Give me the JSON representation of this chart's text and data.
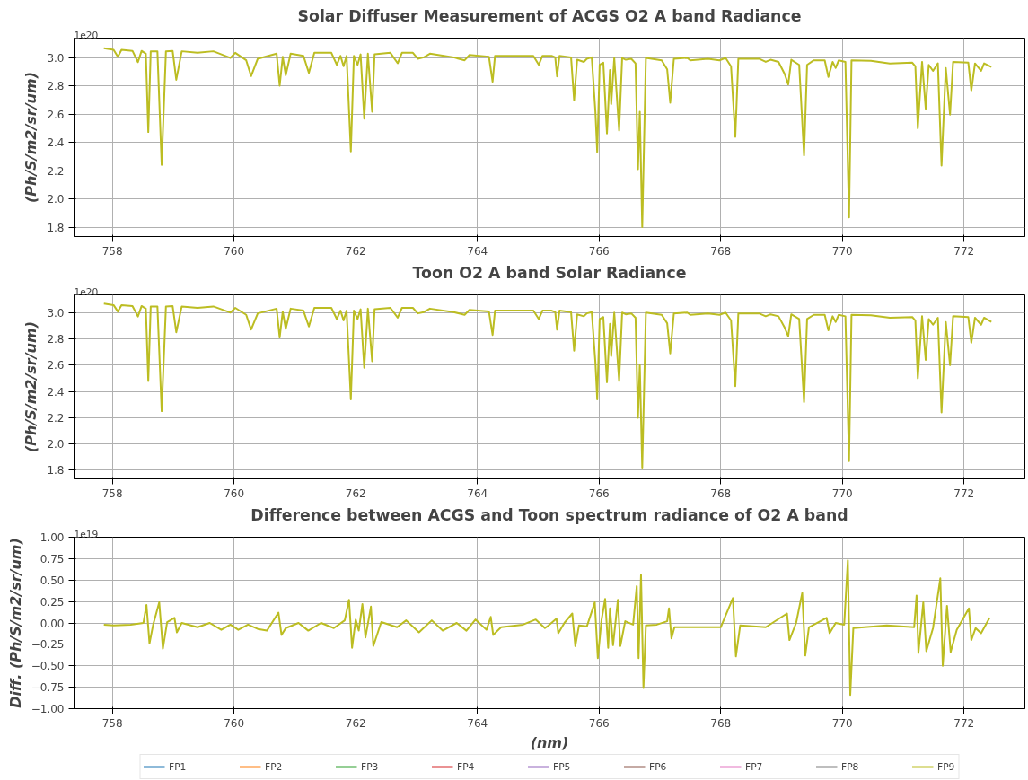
{
  "chart_data": [
    {
      "type": "line",
      "title": "Solar Diffuser Measurement of ACGS O2 A band Radiance",
      "ylabel": "(Ph/S/m2/sr/um)",
      "annotations": [
        "1e20"
      ],
      "x": [
        757.86,
        758.02,
        758.09,
        758.15,
        758.33,
        758.42,
        758.48,
        758.55,
        758.59,
        758.63,
        758.74,
        758.81,
        758.88,
        758.99,
        759.05,
        759.14,
        759.4,
        759.66,
        759.94,
        760.02,
        760.2,
        760.28,
        760.39,
        760.7,
        760.75,
        760.8,
        760.85,
        760.93,
        761.14,
        761.23,
        761.32,
        761.6,
        761.69,
        761.75,
        761.8,
        761.85,
        761.92,
        761.97,
        762.03,
        762.08,
        762.14,
        762.2,
        762.27,
        762.31,
        762.57,
        762.69,
        762.76,
        762.94,
        763.02,
        763.12,
        763.22,
        763.61,
        763.79,
        763.87,
        764.19,
        764.25,
        764.29,
        764.92,
        765.01,
        765.07,
        765.22,
        765.28,
        765.31,
        765.35,
        765.54,
        765.59,
        765.64,
        765.75,
        765.8,
        765.88,
        765.94,
        765.97,
        766.01,
        766.07,
        766.13,
        766.18,
        766.2,
        766.25,
        766.33,
        766.38,
        766.44,
        766.53,
        766.6,
        766.64,
        766.67,
        766.71,
        766.77,
        767.03,
        767.12,
        767.17,
        767.23,
        767.45,
        767.5,
        767.79,
        767.98,
        768.08,
        768.17,
        768.24,
        768.29,
        768.63,
        768.74,
        768.82,
        768.95,
        769.05,
        769.11,
        769.16,
        769.29,
        769.37,
        769.42,
        769.53,
        769.71,
        769.77,
        769.84,
        769.89,
        769.94,
        770.05,
        770.11,
        770.15,
        770.47,
        770.78,
        771.15,
        771.2,
        771.24,
        771.31,
        771.37,
        771.42,
        771.49,
        771.57,
        771.63,
        771.7,
        771.77,
        771.82,
        772.07,
        772.12,
        772.18,
        772.28,
        772.33,
        772.45
      ],
      "series": [
        {
          "color": "#bcbd22",
          "values": [
            3.068,
            3.057,
            3.008,
            3.057,
            3.05,
            2.97,
            3.05,
            3.03,
            2.475,
            3.047,
            3.047,
            2.242,
            3.047,
            3.05,
            2.845,
            3.047,
            3.036,
            3.047,
            3.0,
            3.036,
            2.983,
            2.871,
            2.994,
            3.03,
            2.803,
            3.008,
            2.877,
            3.03,
            3.015,
            2.894,
            3.036,
            3.036,
            2.951,
            3.015,
            2.941,
            3.015,
            2.337,
            3.015,
            2.951,
            3.025,
            2.57,
            3.03,
            2.619,
            3.025,
            3.036,
            2.962,
            3.036,
            3.036,
            2.994,
            3.004,
            3.03,
            3.004,
            2.983,
            3.021,
            3.008,
            2.831,
            3.015,
            3.015,
            2.951,
            3.015,
            3.015,
            3.004,
            2.869,
            3.015,
            3.004,
            2.7,
            2.987,
            2.972,
            2.994,
            3.004,
            2.619,
            2.33,
            2.951,
            2.966,
            2.465,
            2.914,
            2.673,
            3.0,
            2.486,
            3.0,
            2.987,
            2.994,
            2.961,
            2.212,
            2.619,
            1.802,
            3.0,
            2.983,
            2.919,
            2.683,
            2.994,
            3.0,
            2.983,
            2.994,
            2.983,
            3.0,
            2.94,
            2.441,
            2.994,
            2.994,
            2.972,
            2.987,
            2.972,
            2.887,
            2.812,
            2.987,
            2.951,
            2.309,
            2.951,
            2.983,
            2.983,
            2.865,
            2.972,
            2.929,
            2.983,
            2.972,
            1.87,
            2.983,
            2.979,
            2.961,
            2.966,
            2.94,
            2.501,
            2.972,
            2.64,
            2.951,
            2.908,
            2.961,
            2.238,
            2.929,
            2.598,
            2.972,
            2.966,
            2.769,
            2.961,
            2.908,
            2.961,
            2.936
          ]
        }
      ],
      "xlim": [
        757.37,
        773.0
      ],
      "xticks": [
        758,
        760,
        762,
        764,
        766,
        768,
        770,
        772
      ],
      "ylim": [
        1.735,
        3.14
      ],
      "yticks": [
        {
          "value": 1.8,
          "label": "1.8"
        },
        {
          "value": 2.0,
          "label": "2.0"
        },
        {
          "value": 2.2,
          "label": "2.2"
        },
        {
          "value": 2.4,
          "label": "2.4"
        },
        {
          "value": 2.6,
          "label": "2.6"
        },
        {
          "value": 2.8,
          "label": "2.8"
        },
        {
          "value": 3.0,
          "label": "3.0"
        }
      ],
      "grid": true,
      "line_style": "solid",
      "marker": "none"
    },
    {
      "type": "line",
      "title": "Toon O2 A band Solar Radiance",
      "ylabel": "(Ph/S/m2/sr/um)",
      "annotations": [
        "1e20"
      ],
      "x": [
        757.86,
        758.02,
        758.09,
        758.15,
        758.33,
        758.42,
        758.48,
        758.55,
        758.59,
        758.63,
        758.74,
        758.81,
        758.88,
        758.99,
        759.05,
        759.14,
        759.4,
        759.66,
        759.94,
        760.02,
        760.2,
        760.28,
        760.39,
        760.7,
        760.75,
        760.8,
        760.85,
        760.93,
        761.14,
        761.23,
        761.32,
        761.6,
        761.69,
        761.75,
        761.8,
        761.85,
        761.92,
        761.97,
        762.03,
        762.08,
        762.14,
        762.2,
        762.27,
        762.31,
        762.57,
        762.69,
        762.76,
        762.94,
        763.02,
        763.12,
        763.22,
        763.61,
        763.79,
        763.87,
        764.19,
        764.25,
        764.29,
        764.92,
        765.01,
        765.07,
        765.22,
        765.28,
        765.31,
        765.35,
        765.54,
        765.59,
        765.64,
        765.75,
        765.8,
        765.88,
        765.94,
        765.97,
        766.01,
        766.07,
        766.13,
        766.18,
        766.2,
        766.25,
        766.33,
        766.38,
        766.44,
        766.53,
        766.6,
        766.64,
        766.67,
        766.71,
        766.77,
        767.03,
        767.12,
        767.17,
        767.23,
        767.45,
        767.5,
        767.79,
        767.98,
        768.08,
        768.17,
        768.24,
        768.29,
        768.63,
        768.74,
        768.82,
        768.95,
        769.05,
        769.11,
        769.16,
        769.29,
        769.37,
        769.42,
        769.53,
        769.71,
        769.77,
        769.84,
        769.89,
        769.94,
        770.05,
        770.11,
        770.15,
        770.47,
        770.78,
        771.15,
        771.2,
        771.24,
        771.31,
        771.37,
        771.42,
        771.49,
        771.57,
        771.63,
        771.7,
        771.77,
        771.82,
        772.07,
        772.12,
        772.18,
        772.28,
        772.33,
        772.45
      ],
      "series": [
        {
          "color": "#bcbd22",
          "values": [
            3.068,
            3.057,
            3.008,
            3.057,
            3.05,
            2.97,
            3.05,
            3.03,
            2.48,
            3.047,
            3.047,
            2.25,
            3.047,
            3.05,
            2.85,
            3.047,
            3.036,
            3.047,
            3.0,
            3.036,
            2.983,
            2.871,
            2.994,
            3.03,
            2.81,
            3.008,
            2.877,
            3.03,
            3.015,
            2.894,
            3.036,
            3.036,
            2.951,
            3.015,
            2.941,
            3.015,
            2.34,
            3.015,
            2.951,
            3.025,
            2.58,
            3.03,
            2.63,
            3.025,
            3.036,
            2.962,
            3.036,
            3.036,
            2.994,
            3.004,
            3.03,
            3.004,
            2.983,
            3.021,
            3.008,
            2.83,
            3.015,
            3.015,
            2.951,
            3.015,
            3.015,
            3.004,
            2.87,
            3.015,
            3.004,
            2.71,
            2.987,
            2.972,
            2.994,
            3.004,
            2.62,
            2.34,
            2.951,
            2.966,
            2.47,
            2.914,
            2.67,
            3.0,
            2.48,
            3.0,
            2.987,
            2.994,
            2.961,
            2.2,
            2.6,
            1.82,
            3.0,
            2.983,
            2.919,
            2.69,
            2.994,
            3.0,
            2.983,
            2.994,
            2.983,
            3.0,
            2.94,
            2.44,
            2.994,
            2.994,
            2.972,
            2.987,
            2.972,
            2.887,
            2.82,
            2.987,
            2.951,
            2.32,
            2.951,
            2.983,
            2.983,
            2.865,
            2.972,
            2.929,
            2.983,
            2.972,
            1.87,
            2.983,
            2.979,
            2.961,
            2.966,
            2.94,
            2.5,
            2.972,
            2.64,
            2.951,
            2.908,
            2.961,
            2.24,
            2.929,
            2.6,
            2.972,
            2.966,
            2.77,
            2.961,
            2.908,
            2.961,
            2.93
          ]
        }
      ],
      "xlim": [
        757.37,
        773.0
      ],
      "xticks": [
        758,
        760,
        762,
        764,
        766,
        768,
        770,
        772
      ],
      "ylim": [
        1.735,
        3.135
      ],
      "yticks": [
        {
          "value": 1.8,
          "label": "1.8"
        },
        {
          "value": 2.0,
          "label": "2.0"
        },
        {
          "value": 2.2,
          "label": "2.2"
        },
        {
          "value": 2.4,
          "label": "2.4"
        },
        {
          "value": 2.6,
          "label": "2.6"
        },
        {
          "value": 2.8,
          "label": "2.8"
        },
        {
          "value": 3.0,
          "label": "3.0"
        }
      ],
      "grid": true,
      "line_style": "solid",
      "marker": "none"
    },
    {
      "type": "line",
      "title": "Difference between ACGS and Toon spectrum radiance of O2 A band",
      "xlabel": "(nm)",
      "ylabel": "Diff. (Ph/S/m2/sr/um)",
      "annotations": [
        "1e19"
      ],
      "x": [
        757.86,
        758.02,
        758.3,
        758.51,
        758.56,
        758.61,
        758.67,
        758.77,
        758.83,
        758.9,
        759.02,
        759.06,
        759.14,
        759.4,
        759.6,
        759.79,
        759.94,
        760.07,
        760.23,
        760.39,
        760.54,
        760.73,
        760.78,
        760.85,
        761.06,
        761.22,
        761.43,
        761.64,
        761.82,
        761.89,
        761.94,
        762.0,
        762.05,
        762.11,
        762.16,
        762.25,
        762.29,
        762.42,
        762.68,
        762.83,
        763.04,
        763.25,
        763.43,
        763.66,
        763.82,
        763.97,
        764.15,
        764.22,
        764.26,
        764.39,
        764.75,
        764.96,
        765.11,
        765.17,
        765.3,
        765.33,
        765.43,
        765.56,
        765.61,
        765.67,
        765.8,
        765.93,
        765.98,
        766.04,
        766.1,
        766.15,
        766.18,
        766.23,
        766.31,
        766.35,
        766.43,
        766.56,
        766.62,
        766.65,
        766.69,
        766.73,
        766.77,
        766.95,
        767.12,
        767.15,
        767.19,
        767.24,
        767.58,
        768.0,
        768.2,
        768.25,
        768.32,
        768.74,
        769.09,
        769.13,
        769.24,
        769.34,
        769.39,
        769.45,
        769.74,
        769.79,
        769.89,
        770.03,
        770.09,
        770.13,
        770.18,
        770.73,
        771.18,
        771.22,
        771.25,
        771.33,
        771.38,
        771.49,
        771.61,
        771.65,
        771.72,
        771.78,
        771.88,
        772.08,
        772.12,
        772.19,
        772.28,
        772.42
      ],
      "series": [
        {
          "name": "FP1",
          "color": "#1f77b4",
          "values": [
            null,
            null,
            null,
            null,
            null,
            null,
            null,
            null,
            null,
            null,
            null,
            null,
            null,
            null,
            null,
            null,
            null,
            null,
            null,
            null,
            null,
            null,
            null,
            null,
            null,
            null,
            null,
            null,
            null,
            null,
            null,
            null,
            null,
            null,
            null,
            null,
            null,
            null,
            null,
            null,
            null,
            null,
            null,
            null,
            null,
            null,
            null,
            null,
            null,
            null,
            null,
            null,
            null,
            null,
            null,
            null,
            null,
            null,
            null,
            null,
            null,
            null,
            null,
            null,
            null,
            null,
            null,
            null,
            null,
            null,
            null,
            null,
            null,
            null,
            null,
            null,
            null,
            null,
            null,
            null,
            null,
            null,
            null,
            null,
            null,
            null,
            null,
            null,
            null,
            null,
            null,
            null,
            null,
            null,
            null,
            null,
            null,
            null,
            null,
            null,
            null,
            null,
            null,
            null,
            null,
            null,
            null,
            null,
            null,
            null,
            null,
            null,
            null,
            null,
            null,
            null,
            null,
            null
          ]
        },
        {
          "name": "FP2",
          "color": "#ff7f0e",
          "values": [
            null,
            null,
            null,
            null,
            null,
            null,
            null,
            null,
            null,
            null,
            null,
            null,
            null,
            null,
            null,
            null,
            null,
            null,
            null,
            null,
            null,
            null,
            null,
            null,
            null,
            null,
            null,
            null,
            null,
            null,
            null,
            null,
            null,
            null,
            null,
            null,
            null,
            null,
            null,
            null,
            null,
            null,
            null,
            null,
            null,
            null,
            null,
            null,
            null,
            null,
            null,
            null,
            null,
            null,
            null,
            null,
            null,
            null,
            null,
            null,
            null,
            null,
            null,
            null,
            null,
            null,
            null,
            null,
            null,
            null,
            null,
            null,
            null,
            null,
            null,
            null,
            null,
            null,
            null,
            null,
            null,
            null,
            null,
            null,
            null,
            null,
            null,
            null,
            null,
            null,
            null,
            null,
            null,
            null,
            null,
            null,
            null,
            null,
            null,
            null,
            null,
            null,
            null,
            null,
            null,
            null,
            null,
            null,
            null,
            null,
            null,
            null,
            null,
            null,
            null,
            null,
            null,
            null
          ]
        },
        {
          "name": "FP3",
          "color": "#2ca02c",
          "values": [
            null,
            null,
            null,
            null,
            null,
            null,
            null,
            null,
            null,
            null,
            null,
            null,
            null,
            null,
            null,
            null,
            null,
            null,
            null,
            null,
            null,
            null,
            null,
            null,
            null,
            null,
            null,
            null,
            null,
            null,
            null,
            null,
            null,
            null,
            null,
            null,
            null,
            null,
            null,
            null,
            null,
            null,
            null,
            null,
            null,
            null,
            null,
            null,
            null,
            null,
            null,
            null,
            null,
            null,
            null,
            null,
            null,
            null,
            null,
            null,
            null,
            null,
            null,
            null,
            null,
            null,
            null,
            null,
            null,
            null,
            null,
            null,
            null,
            null,
            null,
            null,
            null,
            null,
            null,
            null,
            null,
            null,
            null,
            null,
            null,
            null,
            null,
            null,
            null,
            null,
            null,
            null,
            null,
            null,
            null,
            null,
            null,
            null,
            null,
            null,
            null,
            null,
            null,
            null,
            null,
            null,
            null,
            null,
            null,
            null,
            null,
            null,
            null,
            null,
            null,
            null,
            null,
            null
          ]
        },
        {
          "name": "FP4",
          "color": "#d62728",
          "values": [
            null,
            null,
            null,
            null,
            null,
            null,
            null,
            null,
            null,
            null,
            null,
            null,
            null,
            null,
            null,
            null,
            null,
            null,
            null,
            null,
            null,
            null,
            null,
            null,
            null,
            null,
            null,
            null,
            null,
            null,
            null,
            null,
            null,
            null,
            null,
            null,
            null,
            null,
            null,
            null,
            null,
            null,
            null,
            null,
            null,
            null,
            null,
            null,
            null,
            null,
            null,
            null,
            null,
            null,
            null,
            null,
            null,
            null,
            null,
            null,
            null,
            null,
            null,
            null,
            null,
            null,
            null,
            null,
            null,
            null,
            null,
            null,
            null,
            null,
            null,
            null,
            null,
            null,
            null,
            null,
            null,
            null,
            null,
            null,
            null,
            null,
            null,
            null,
            null,
            null,
            null,
            null,
            null,
            null,
            null,
            null,
            null,
            null,
            null,
            null,
            null,
            null,
            null,
            null,
            null,
            null,
            null,
            null,
            null,
            null,
            null,
            null,
            null,
            null,
            null,
            null,
            null,
            null
          ]
        },
        {
          "name": "FP5",
          "color": "#9467bd",
          "values": [
            null,
            null,
            null,
            null,
            null,
            null,
            null,
            null,
            null,
            null,
            null,
            null,
            null,
            null,
            null,
            null,
            null,
            null,
            null,
            null,
            null,
            null,
            null,
            null,
            null,
            null,
            null,
            null,
            null,
            null,
            null,
            null,
            null,
            null,
            null,
            null,
            null,
            null,
            null,
            null,
            null,
            null,
            null,
            null,
            null,
            null,
            null,
            null,
            null,
            null,
            null,
            null,
            null,
            null,
            null,
            null,
            null,
            null,
            null,
            null,
            null,
            null,
            null,
            null,
            null,
            null,
            null,
            null,
            null,
            null,
            null,
            null,
            null,
            null,
            null,
            null,
            null,
            null,
            null,
            null,
            null,
            null,
            null,
            null,
            null,
            null,
            null,
            null,
            null,
            null,
            null,
            null,
            null,
            null,
            null,
            null,
            null,
            null,
            null,
            null,
            null,
            null,
            null,
            null,
            null,
            null,
            null,
            null,
            null,
            null,
            null,
            null,
            null,
            null,
            null,
            null,
            null,
            null
          ]
        },
        {
          "name": "FP6",
          "color": "#8c564b",
          "values": [
            null,
            null,
            null,
            null,
            null,
            null,
            null,
            null,
            null,
            null,
            null,
            null,
            null,
            null,
            null,
            null,
            null,
            null,
            null,
            null,
            null,
            null,
            null,
            null,
            null,
            null,
            null,
            null,
            null,
            null,
            null,
            null,
            null,
            null,
            null,
            null,
            null,
            null,
            null,
            null,
            null,
            null,
            null,
            null,
            null,
            null,
            null,
            null,
            null,
            null,
            null,
            null,
            null,
            null,
            null,
            null,
            null,
            null,
            null,
            null,
            null,
            null,
            null,
            null,
            null,
            null,
            null,
            null,
            null,
            null,
            null,
            null,
            null,
            null,
            null,
            null,
            null,
            null,
            null,
            null,
            null,
            null,
            null,
            null,
            null,
            null,
            null,
            null,
            null,
            null,
            null,
            null,
            null,
            null,
            null,
            null,
            null,
            null,
            null,
            null,
            null,
            null,
            null,
            null,
            null,
            null,
            null,
            null,
            null,
            null,
            null,
            null,
            null,
            null,
            null,
            null,
            null,
            null
          ]
        },
        {
          "name": "FP7",
          "color": "#e377c2",
          "values": [
            null,
            null,
            null,
            null,
            null,
            null,
            null,
            null,
            null,
            null,
            null,
            null,
            null,
            null,
            null,
            null,
            null,
            null,
            null,
            null,
            null,
            null,
            null,
            null,
            null,
            null,
            null,
            null,
            null,
            null,
            null,
            null,
            null,
            null,
            null,
            null,
            null,
            null,
            null,
            null,
            null,
            null,
            null,
            null,
            null,
            null,
            null,
            null,
            null,
            null,
            null,
            null,
            null,
            null,
            null,
            null,
            null,
            null,
            null,
            null,
            null,
            null,
            null,
            null,
            null,
            null,
            null,
            null,
            null,
            null,
            null,
            null,
            null,
            null,
            null,
            null,
            null,
            null,
            null,
            null,
            null,
            null,
            null,
            null,
            null,
            null,
            null,
            null,
            null,
            null,
            null,
            null,
            null,
            null,
            null,
            null,
            null,
            null,
            null,
            null,
            null,
            null,
            null,
            null,
            null,
            null,
            null,
            null,
            null,
            null,
            null,
            null,
            null,
            null,
            null,
            null,
            null,
            null
          ]
        },
        {
          "name": "FP8",
          "color": "#7f7f7f",
          "values": [
            null,
            null,
            null,
            null,
            null,
            null,
            null,
            null,
            null,
            null,
            null,
            null,
            null,
            null,
            null,
            null,
            null,
            null,
            null,
            null,
            null,
            null,
            null,
            null,
            null,
            null,
            null,
            null,
            null,
            null,
            null,
            null,
            null,
            null,
            null,
            null,
            null,
            null,
            null,
            null,
            null,
            null,
            null,
            null,
            null,
            null,
            null,
            null,
            null,
            null,
            null,
            null,
            null,
            null,
            null,
            null,
            null,
            null,
            null,
            null,
            null,
            null,
            null,
            null,
            null,
            null,
            null,
            null,
            null,
            null,
            null,
            null,
            null,
            null,
            null,
            null,
            null,
            null,
            null,
            null,
            null,
            null,
            null,
            null,
            null,
            null,
            null,
            null,
            null,
            null,
            null,
            null,
            null,
            null,
            null,
            null,
            null,
            null,
            null,
            null,
            null,
            null,
            null,
            null,
            null,
            null,
            null,
            null,
            null,
            null,
            null,
            null,
            null,
            null,
            null,
            null,
            null,
            null
          ]
        },
        {
          "name": "FP9",
          "color": "#bcbd22",
          "values": [
            -0.02,
            -0.03,
            -0.02,
            0.0,
            0.21,
            -0.24,
            -0.02,
            0.24,
            -0.3,
            0.01,
            0.06,
            -0.11,
            0.0,
            -0.05,
            0.0,
            -0.08,
            -0.02,
            -0.08,
            -0.02,
            -0.07,
            -0.09,
            0.12,
            -0.14,
            -0.06,
            0.0,
            -0.09,
            0.0,
            -0.06,
            0.03,
            0.27,
            -0.29,
            0.04,
            -0.09,
            0.22,
            -0.17,
            0.19,
            -0.27,
            0.01,
            -0.05,
            0.03,
            -0.11,
            0.03,
            -0.09,
            0.0,
            -0.09,
            0.04,
            -0.08,
            0.07,
            -0.14,
            -0.05,
            -0.02,
            0.04,
            -0.06,
            -0.03,
            0.05,
            -0.12,
            0.0,
            0.11,
            -0.27,
            -0.03,
            -0.04,
            0.24,
            -0.41,
            0.03,
            0.28,
            -0.29,
            0.17,
            -0.26,
            0.27,
            -0.27,
            0.02,
            -0.02,
            0.43,
            -0.41,
            0.56,
            -0.76,
            -0.03,
            -0.02,
            0.02,
            0.17,
            -0.18,
            -0.05,
            -0.05,
            -0.05,
            0.29,
            -0.39,
            -0.03,
            -0.05,
            0.11,
            -0.2,
            0.0,
            0.35,
            -0.38,
            -0.05,
            0.06,
            -0.12,
            0.0,
            -0.02,
            0.73,
            -0.84,
            -0.06,
            -0.03,
            -0.05,
            0.32,
            -0.35,
            0.24,
            -0.33,
            -0.06,
            0.52,
            -0.5,
            0.2,
            -0.34,
            -0.08,
            0.17,
            -0.2,
            -0.06,
            -0.12,
            0.06
          ]
        }
      ],
      "xlim": [
        757.37,
        773.0
      ],
      "xticks": [
        758,
        760,
        762,
        764,
        766,
        768,
        770,
        772
      ],
      "ylim": [
        -1.0,
        1.0
      ],
      "yticks": [
        {
          "value": -1.0,
          "label": "−1.00"
        },
        {
          "value": -0.75,
          "label": "−0.75"
        },
        {
          "value": -0.5,
          "label": "−0.50"
        },
        {
          "value": -0.25,
          "label": "−0.25"
        },
        {
          "value": 0.0,
          "label": "0.00"
        },
        {
          "value": 0.25,
          "label": "0.25"
        },
        {
          "value": 0.5,
          "label": "0.50"
        },
        {
          "value": 0.75,
          "label": "0.75"
        },
        {
          "value": 1.0,
          "label": "1.00"
        }
      ],
      "grid": true,
      "legend": "bottom",
      "line_style": "solid",
      "marker": "none"
    }
  ]
}
